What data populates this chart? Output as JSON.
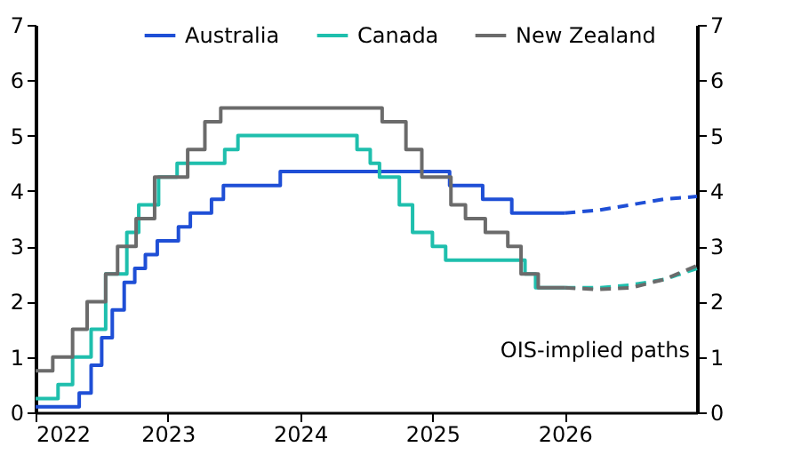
{
  "chart_data": {
    "type": "step",
    "series": [
      {
        "name": "Australia",
        "color": "#1f4fd6",
        "x": [
          2022.0,
          2022.33,
          2022.42,
          2022.5,
          2022.58,
          2022.67,
          2022.75,
          2022.83,
          2022.92,
          2023.08,
          2023.17,
          2023.33,
          2023.42,
          2023.85,
          2025.13,
          2025.38,
          2025.6,
          2026.0
        ],
        "values": [
          0.1,
          0.35,
          0.85,
          1.35,
          1.85,
          2.35,
          2.6,
          2.85,
          3.1,
          3.35,
          3.6,
          3.85,
          4.1,
          4.35,
          4.1,
          3.85,
          3.6,
          3.6
        ]
      },
      {
        "name": "Canada",
        "color": "#1fbfad",
        "x": [
          2022.0,
          2022.17,
          2022.28,
          2022.42,
          2022.53,
          2022.69,
          2022.78,
          2022.93,
          2023.07,
          2023.43,
          2023.53,
          2024.43,
          2024.53,
          2024.6,
          2024.75,
          2024.85,
          2025.0,
          2025.1,
          2025.7,
          2025.78,
          2026.0
        ],
        "values": [
          0.25,
          0.5,
          1.0,
          1.5,
          2.5,
          3.25,
          3.75,
          4.25,
          4.5,
          4.75,
          5.0,
          4.75,
          4.5,
          4.25,
          3.75,
          3.25,
          3.0,
          2.75,
          2.5,
          2.25,
          2.25
        ]
      },
      {
        "name": "New Zealand",
        "color": "#6b6b6b",
        "x": [
          2022.0,
          2022.13,
          2022.28,
          2022.39,
          2022.53,
          2022.62,
          2022.76,
          2022.9,
          2023.15,
          2023.28,
          2023.4,
          2024.62,
          2024.8,
          2024.92,
          2025.14,
          2025.25,
          2025.4,
          2025.57,
          2025.67,
          2025.8,
          2026.0
        ],
        "values": [
          0.75,
          1.0,
          1.5,
          2.0,
          2.5,
          3.0,
          3.5,
          4.25,
          4.75,
          5.25,
          5.5,
          5.25,
          4.75,
          4.25,
          3.75,
          3.5,
          3.25,
          3.0,
          2.5,
          2.25,
          2.25
        ]
      },
      {
        "type": "line",
        "line_style": "dashed",
        "color": "#1f4fd6",
        "x": [
          2026.0,
          2026.25,
          2026.5,
          2026.75,
          2027.0
        ],
        "values": [
          3.6,
          3.65,
          3.75,
          3.85,
          3.9
        ]
      },
      {
        "type": "line",
        "line_style": "dashed",
        "color": "#1fbfad",
        "x": [
          2026.0,
          2026.25,
          2026.5,
          2026.75,
          2027.0
        ],
        "values": [
          2.25,
          2.25,
          2.3,
          2.4,
          2.6
        ]
      },
      {
        "type": "line",
        "line_style": "dashed",
        "color": "#6b6b6b",
        "x": [
          2026.0,
          2026.25,
          2026.5,
          2026.75,
          2027.0
        ],
        "values": [
          2.25,
          2.22,
          2.25,
          2.4,
          2.65
        ]
      }
    ],
    "xlim": [
      2022,
      2027
    ],
    "xticks": [
      2022,
      2023,
      2024,
      2025,
      2026
    ],
    "ylim": [
      0,
      7
    ],
    "yticks": [
      0,
      1,
      2,
      3,
      4,
      5,
      6,
      7
    ],
    "y2lim": [
      0,
      7
    ],
    "y2ticks": [
      0,
      1,
      2,
      3,
      4,
      5,
      6,
      7
    ],
    "annotations": [
      "OIS-implied paths"
    ],
    "legend": "top",
    "grid": false
  }
}
